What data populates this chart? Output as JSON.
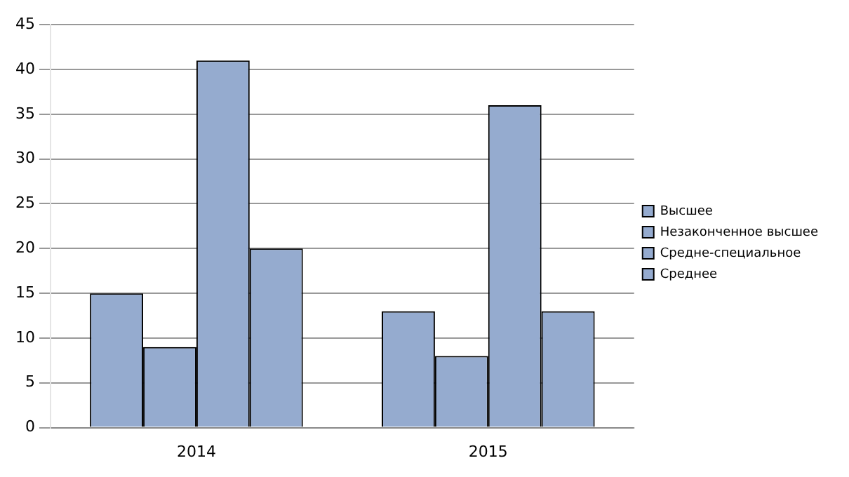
{
  "chart_data": {
    "type": "bar",
    "categories": [
      "2014",
      "2015"
    ],
    "series": [
      {
        "name": "Высшее",
        "color": "#95abcf",
        "values": [
          15,
          13
        ]
      },
      {
        "name": "Незаконченное высшее",
        "color": "#95abcf",
        "values": [
          9,
          8
        ]
      },
      {
        "name": "Средне-специальное",
        "color": "#95abcf",
        "values": [
          41,
          36
        ]
      },
      {
        "name": "Среднее",
        "color": "#95abcf",
        "values": [
          20,
          13
        ]
      }
    ],
    "ylim": [
      0,
      45
    ],
    "yticks": [
      0,
      5,
      10,
      15,
      20,
      25,
      30,
      35,
      40,
      45
    ],
    "grid": "y",
    "legend": "right"
  }
}
